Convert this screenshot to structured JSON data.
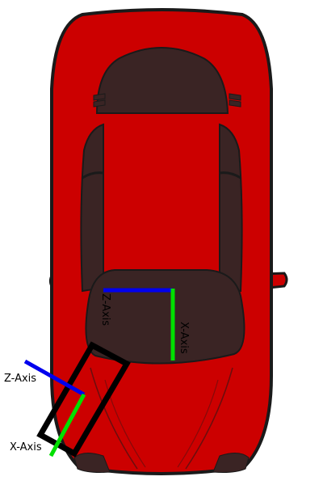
{
  "colors": {
    "car_body": "#cc0000",
    "car_outline": "#1a1a1a",
    "glass": "#3a2424",
    "x_axis": "#00e000",
    "z_axis": "#0000ee",
    "sensor_frame": "#000000",
    "background": "#ffffff"
  },
  "labels": {
    "car_z_axis": "Z-Axis",
    "car_x_axis": "X-Axis",
    "sensor_z_axis": "Z-Axis",
    "sensor_x_axis": "X-Axis"
  }
}
